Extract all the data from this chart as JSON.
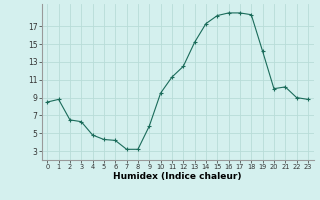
{
  "x": [
    0,
    1,
    2,
    3,
    4,
    5,
    6,
    7,
    8,
    9,
    10,
    11,
    12,
    13,
    14,
    15,
    16,
    17,
    18,
    19,
    20,
    21,
    22,
    23
  ],
  "y": [
    8.5,
    8.8,
    6.5,
    6.3,
    4.8,
    4.3,
    4.2,
    3.2,
    3.2,
    5.8,
    9.5,
    11.3,
    12.5,
    15.2,
    17.3,
    18.2,
    18.5,
    18.5,
    18.3,
    14.2,
    10.0,
    10.2,
    9.0,
    8.8
  ],
  "xlabel": "Humidex (Indice chaleur)",
  "bg_color": "#d4f0ee",
  "grid_color": "#b8dcd8",
  "line_color": "#1a6b5a",
  "yticks": [
    3,
    5,
    7,
    9,
    11,
    13,
    15,
    17
  ],
  "xticks": [
    0,
    1,
    2,
    3,
    4,
    5,
    6,
    7,
    8,
    9,
    10,
    11,
    12,
    13,
    14,
    15,
    16,
    17,
    18,
    19,
    20,
    21,
    22,
    23
  ],
  "xlim": [
    -0.5,
    23.5
  ],
  "ylim": [
    2.0,
    19.5
  ]
}
